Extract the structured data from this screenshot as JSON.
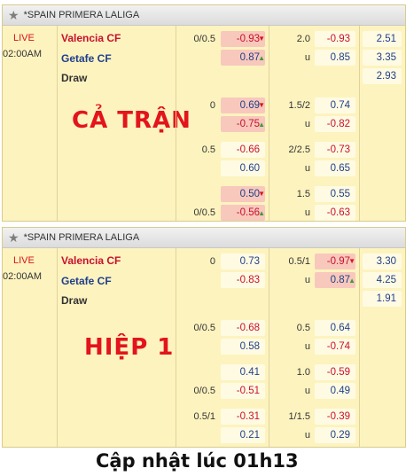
{
  "top": {
    "league": "*SPAIN PRIMERA LALIGA",
    "status": "LIVE",
    "time": "02:00AM",
    "home": "Valencia CF",
    "away": "Getafe CF",
    "draw": "Draw",
    "period_label": "CẢ TRẬN",
    "rows": [
      {
        "hcap": "0/0.5",
        "h1": "-0.93",
        "h2": "0.87",
        "ou": "2.0",
        "o1": "-0.93",
        "u": "u",
        "o2": "0.85",
        "x1": "2.51",
        "x2": "3.35",
        "x3": "2.93"
      },
      {
        "hcap": "0",
        "h1": "0.69",
        "h2": "-0.75",
        "ou": "1.5/2",
        "o1": "0.74",
        "u": "u",
        "o2": "-0.82"
      },
      {
        "hcap": "0.5",
        "h1": "-0.66",
        "h2": "0.60",
        "ou": "2/2.5",
        "o1": "-0.73",
        "u": "u",
        "o2": "0.65"
      },
      {
        "hcap": "0/0.5",
        "h1": "0.50",
        "h2": "-0.56",
        "ou": "1.5",
        "o1": "0.55",
        "u": "u",
        "o2": "-0.63"
      }
    ]
  },
  "bottom": {
    "league": "*SPAIN PRIMERA LALIGA",
    "status": "LIVE",
    "time": "02:00AM",
    "home": "Valencia CF",
    "away": "Getafe CF",
    "draw": "Draw",
    "period_label": "HIỆP 1",
    "rows": [
      {
        "hcap": "0",
        "h1": "0.73",
        "h2": "-0.83",
        "ou": "0.5/1",
        "o1": "-0.97",
        "u": "u",
        "o2": "0.87",
        "x1": "3.30",
        "x2": "4.25",
        "x3": "1.91"
      },
      {
        "hcap": "0/0.5",
        "h1": "-0.68",
        "h2": "0.58",
        "ou": "0.5",
        "o1": "0.64",
        "u": "u",
        "o2": "-0.74"
      },
      {
        "hcap": "0/0.5",
        "h1": "0.41",
        "h2": "-0.51",
        "ou": "1.0",
        "o1": "-0.59",
        "u": "u",
        "o2": "0.49"
      },
      {
        "hcap": "0.5/1",
        "h1": "-0.31",
        "h2": "0.21",
        "ou": "1/1.5",
        "o1": "-0.39",
        "u": "u",
        "o2": "0.29"
      }
    ]
  },
  "footer": "Cập nhật lúc 01h13"
}
